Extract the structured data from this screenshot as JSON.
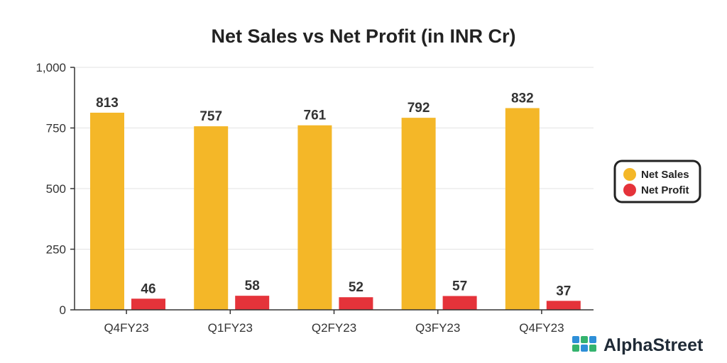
{
  "chart_data": {
    "type": "bar",
    "title": "Net Sales vs Net Profit (in INR Cr)",
    "xlabel": "",
    "ylabel": "",
    "categories": [
      "Q4FY23",
      "Q1FY23",
      "Q2FY23",
      "Q3FY23",
      "Q4FY23"
    ],
    "series": [
      {
        "name": "Net Sales",
        "color": "#F4B728",
        "values": [
          813,
          757,
          761,
          792,
          832
        ]
      },
      {
        "name": "Net Profit",
        "color": "#E5333A",
        "values": [
          46,
          58,
          52,
          57,
          37
        ]
      }
    ],
    "ylim": [
      0,
      1000
    ],
    "yticks": [
      0,
      250,
      500,
      750,
      1000
    ],
    "ytick_labels": [
      "0",
      "250",
      "500",
      "750",
      "1,000"
    ],
    "grid": true,
    "legend_position": "right",
    "data_labels": true
  },
  "brand": {
    "name": "AlphaStreet",
    "logo_icon": "alphastreet-grid-logo-icon"
  }
}
